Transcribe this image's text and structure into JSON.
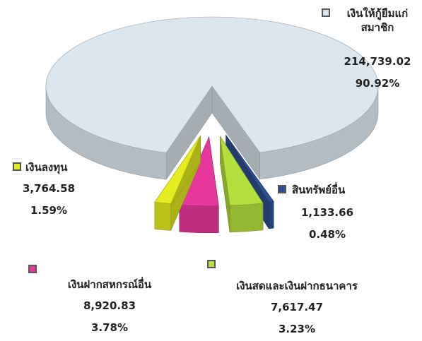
{
  "chart_data": {
    "type": "pie",
    "categories": [
      "เงินให้กู้ยืมแก่สมาชิก",
      "สินทรัพย์อื่น",
      "เงินสดและเงินฝากธนาคาร",
      "เงินฝากสหกรณ์อื่น",
      "เงินลงทุน"
    ],
    "values": [
      214739.02,
      1133.66,
      7617.47,
      8920.83,
      3764.58
    ],
    "value_labels": [
      "214,739.02",
      "1,133.66",
      "7,617.47",
      "8,920.83",
      "3,764.58"
    ],
    "percents": [
      90.92,
      0.48,
      3.23,
      3.78,
      1.59
    ],
    "percent_labels": [
      "90.92%",
      "0.48%",
      "3.23%",
      "3.78%",
      "1.59%"
    ],
    "colors": [
      "#dce6ee",
      "#2f4f93",
      "#b4df3c",
      "#e8379c",
      "#e4ec20"
    ]
  }
}
